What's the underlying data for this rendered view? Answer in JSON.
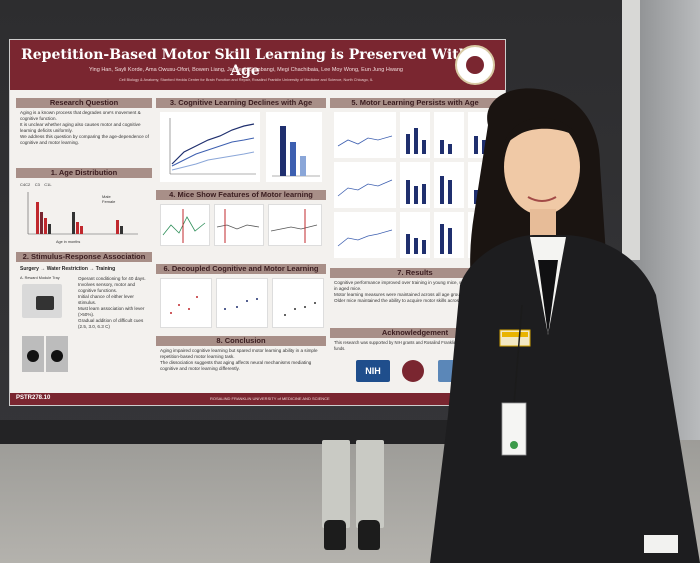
{
  "poster": {
    "title": "Repetition-Based Motor Skill Learning is Preserved With Age",
    "authors": "Ying Han, Sayli Korde, Ama Owusu-Ofori, Bowen Liang, Jaydeep Sambangi, Megi Chachibaia, Lee Moy Wong, Eun Jung Hwang",
    "affiliations": "Cell Biology & Anatomy, Stanford Hedda Center for Brain Function and Repair, Rosalind Franklin University of Medicine and Science, North Chicago, IL",
    "poster_code": "PSTR278.10",
    "institution_footer": "ROSALIND FRANKLIN UNIVERSITY of MEDICINE AND SCIENCE",
    "sections": {
      "research_question": {
        "title": "Research Question",
        "bullets": [
          "Aging is a known process that degrades one's movement & cognitive function.",
          "It is unclear whether aging also causes motor and cognitive learning deficits uniformly.",
          "We address this question by comparing the age-dependence of cognitive and motor learning."
        ]
      },
      "age_distribution": {
        "title": "1. Age Distribution",
        "legend": [
          "Male",
          "Female"
        ],
        "groups": [
          "C4C2",
          "C3",
          "C1L"
        ],
        "xlabel": "Age in months"
      },
      "stimulus_response": {
        "title": "2. Stimulus-Response Association",
        "flow": [
          "Surgery",
          "Water Restriction",
          "Training"
        ],
        "device_label": "A. Reward Module Tray",
        "bullets": [
          "Operant conditioning for 40 days.",
          "Involves sensory, motor and cognitive functions.",
          "Initial chance of either lever stimulus.",
          "Must learn association with lever (>50%).",
          "Gradual addition of difficult cues (2.5, 3.0, 6.3 C)"
        ]
      },
      "cognitive_decline": {
        "title": "3. Cognitive Learning Declines with Age"
      },
      "mice_features": {
        "title": "4. Mice Show Features of Motor learning"
      },
      "decoupled": {
        "title": "6. Decoupled Cognitive and Motor Learning"
      },
      "conclusion": {
        "title": "8. Conclusion",
        "bullets": [
          "Aging impaired cognitive learning but spared motor learning ability in a simple repetition-based motor learning task.",
          "The dissociation suggests that aging affects neural mechanisms mediating cognitive and motor learning differently."
        ]
      },
      "motor_persists": {
        "title": "5. Motor Learning Persists with Age"
      },
      "results": {
        "title": "7. Results",
        "bullets": [
          "Cognitive performance improved over training in young mice, with a weaker gain in aged mice.",
          "Motor learning measures were maintained across all age groups.",
          "Older mice maintained the ability to acquire motor skills across training."
        ]
      },
      "acknowledgement": {
        "title": "Acknowledgement",
        "text": "This research was supported by NIH grants and Rosalind Franklin University internal funds."
      }
    },
    "logos": [
      {
        "name": "NIH",
        "color": "#1f4e8c"
      },
      {
        "name": "",
        "color": "#7a2630"
      },
      {
        "name": "",
        "color": "#5b87b8"
      }
    ]
  },
  "badge": {
    "name": "",
    "ribbon_color": "#e9b400"
  },
  "colors": {
    "poster_maroon": "#7a2630",
    "jacket": "#1d1d1f",
    "shirt": "#f4f4f2"
  }
}
